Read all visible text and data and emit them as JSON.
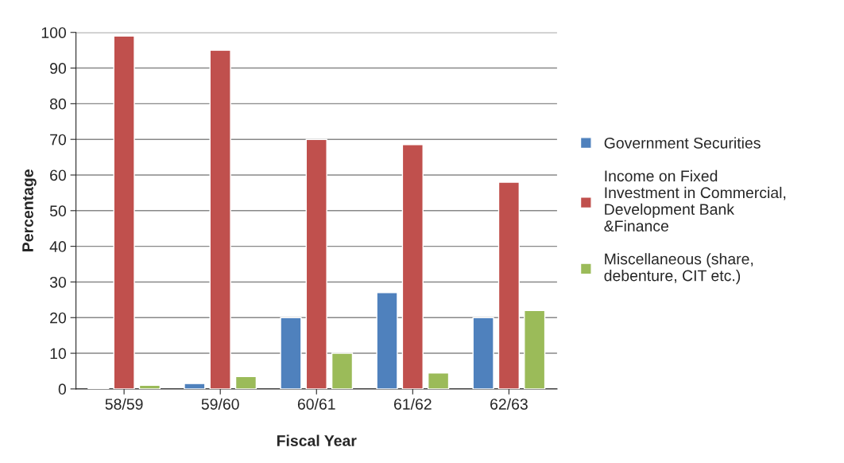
{
  "chart_data": {
    "type": "bar",
    "xlabel": "Fiscal Year",
    "ylabel": "Percentage",
    "categories": [
      "58/59",
      "59/60",
      "60/61",
      "61/62",
      "62/63"
    ],
    "series": [
      {
        "name": "Government Securities",
        "color": "#4f81bd",
        "values": [
          0.3,
          1.5,
          20,
          27,
          20
        ]
      },
      {
        "name": "Income on Fixed\nInvestment in Commercial,\nDevelopment Bank\n&Finance",
        "color": "#c0504d",
        "values": [
          99,
          95,
          70,
          68.5,
          58
        ]
      },
      {
        "name": "Miscellaneous (share,\ndebenture, CIT etc.)",
        "color": "#9bbb59",
        "values": [
          1,
          3.5,
          10,
          4.5,
          22
        ]
      }
    ],
    "ylim": [
      0,
      100
    ],
    "yticks": [
      0,
      10,
      20,
      30,
      40,
      50,
      60,
      70,
      80,
      90,
      100
    ],
    "grid": "y",
    "legend": "right"
  }
}
